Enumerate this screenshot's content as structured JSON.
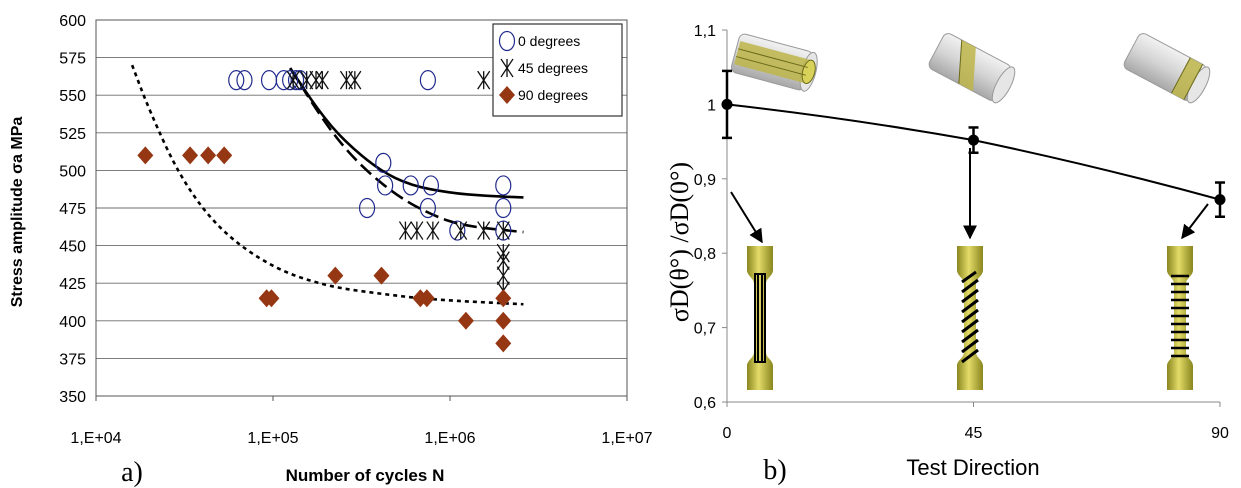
{
  "chart_data": [
    {
      "panel_label": "a)",
      "type": "scatter",
      "xlabel": "Number of cycles N",
      "ylabel": "Stress amplitude σa MPa",
      "xscale": "log",
      "xlim": [
        10000,
        10000000
      ],
      "ylim": [
        350,
        600
      ],
      "xticks": [
        "1,E+04",
        "1,E+05",
        "1,E+06",
        "1,E+07"
      ],
      "yticks": [
        "350",
        "375",
        "400",
        "425",
        "450",
        "475",
        "500",
        "525",
        "550",
        "575",
        "600"
      ],
      "grid": "horizontal",
      "legend_position": "top-right",
      "series": [
        {
          "name": "0 degrees",
          "marker": "open-circle",
          "color": "#1f2a8c",
          "points": [
            [
              62000,
              560
            ],
            [
              69000,
              560
            ],
            [
              95000,
              560
            ],
            [
              115000,
              560
            ],
            [
              125000,
              560
            ],
            [
              135000,
              560
            ],
            [
              142000,
              560
            ],
            [
              750000,
              560
            ],
            [
              420000,
              505
            ],
            [
              430000,
              490
            ],
            [
              600000,
              490
            ],
            [
              780000,
              490
            ],
            [
              340000,
              475
            ],
            [
              750000,
              475
            ],
            [
              1100000,
              460
            ],
            [
              2000000,
              490
            ],
            [
              2000000,
              475
            ],
            [
              2000000,
              460
            ]
          ]
        },
        {
          "name": "45 degrees",
          "marker": "asterisk",
          "color": "#111111",
          "points": [
            [
              130000,
              560
            ],
            [
              155000,
              560
            ],
            [
              175000,
              560
            ],
            [
              190000,
              560
            ],
            [
              260000,
              560
            ],
            [
              290000,
              560
            ],
            [
              1550000,
              560
            ],
            [
              560000,
              460
            ],
            [
              650000,
              460
            ],
            [
              800000,
              460
            ],
            [
              1150000,
              460
            ],
            [
              1550000,
              460
            ],
            [
              2000000,
              460
            ],
            [
              2000000,
              445
            ],
            [
              2000000,
              440
            ],
            [
              2000000,
              430
            ],
            [
              2000000,
              420
            ]
          ]
        },
        {
          "name": "90 degrees",
          "marker": "diamond",
          "color": "#963714",
          "points": [
            [
              19000,
              510
            ],
            [
              34000,
              510
            ],
            [
              43000,
              510
            ],
            [
              53000,
              510
            ],
            [
              92000,
              415
            ],
            [
              98000,
              415
            ],
            [
              225000,
              430
            ],
            [
              410000,
              430
            ],
            [
              680000,
              415
            ],
            [
              740000,
              415
            ],
            [
              1230000,
              400
            ],
            [
              2000000,
              415
            ],
            [
              2000000,
              400
            ],
            [
              2000000,
              385
            ]
          ]
        }
      ],
      "fit_curves": [
        {
          "style": "solid",
          "color": "#000000",
          "points": [
            [
              125000,
              568
            ],
            [
              180000,
              540
            ],
            [
              250000,
              520
            ],
            [
              400000,
              500
            ],
            [
              600000,
              490
            ],
            [
              1000000,
              485
            ],
            [
              1600000,
              483
            ],
            [
              2600000,
              482
            ]
          ]
        },
        {
          "style": "dashed",
          "color": "#000000",
          "points": [
            [
              125000,
              568
            ],
            [
              200000,
              530
            ],
            [
              300000,
              505
            ],
            [
              500000,
              483
            ],
            [
              800000,
              470
            ],
            [
              1200000,
              463
            ],
            [
              2600000,
              459
            ]
          ]
        },
        {
          "style": "dotted",
          "color": "#000000",
          "points": [
            [
              16000,
              570
            ],
            [
              20000,
              540
            ],
            [
              30000,
              495
            ],
            [
              50000,
              460
            ],
            [
              100000,
              435
            ],
            [
              200000,
              423
            ],
            [
              400000,
              418
            ],
            [
              800000,
              414
            ],
            [
              2600000,
              411
            ]
          ]
        }
      ]
    },
    {
      "panel_label": "b)",
      "type": "line",
      "xlabel": "Test Direction",
      "ylabel": "σD(θ°) /σD(0°)",
      "xlim": [
        0,
        90
      ],
      "ylim": [
        0.6,
        1.1
      ],
      "xticks": [
        "0",
        "45",
        "90"
      ],
      "yticks": [
        "0,6",
        "0,7",
        "0,8",
        "0,9",
        "1",
        "1,1"
      ],
      "grid": "none",
      "series": [
        {
          "x": [
            0,
            45,
            90
          ],
          "y": [
            1.0,
            0.952,
            0.872
          ],
          "error": [
            0.045,
            0.017,
            0.023
          ],
          "color": "#000000"
        }
      ],
      "illustrations": [
        {
          "angle": 0,
          "cylinder_fibres": "axial",
          "specimen_stripes": "longitudinal"
        },
        {
          "angle": 45,
          "cylinder_fibres": "helical",
          "specimen_stripes": "diagonal"
        },
        {
          "angle": 90,
          "cylinder_fibres": "hoop",
          "specimen_stripes": "transverse"
        }
      ],
      "colors": {
        "specimen": "#c9c24a",
        "specimen_dark": "#6b6a1a",
        "cylinder": "#c8c8c8"
      }
    }
  ]
}
